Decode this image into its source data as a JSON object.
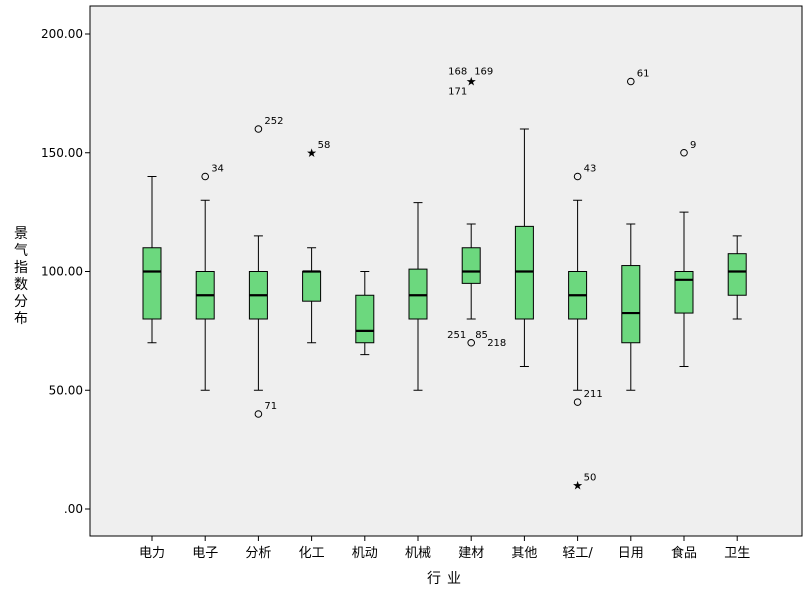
{
  "chart_data": {
    "type": "boxplot",
    "xlabel": "行业",
    "ylabel": "景气指数分布",
    "ylim": [
      0,
      200
    ],
    "yticks": [
      {
        "value": 0,
        "label": ".00"
      },
      {
        "value": 50,
        "label": "50.00"
      },
      {
        "value": 100,
        "label": "100.00"
      },
      {
        "value": 150,
        "label": "150.00"
      },
      {
        "value": 200,
        "label": "200.00"
      }
    ],
    "box_color": "#6cd87e",
    "plot_background": "#efefef",
    "categories": [
      "电力",
      "电子",
      "分析",
      "化工",
      "机动",
      "机械",
      "建材",
      "其他",
      "轻工/",
      "日用",
      "食品",
      "卫生"
    ],
    "boxes": [
      {
        "category": "电力",
        "min": 70,
        "q1": 80,
        "median": 100,
        "q3": 110,
        "max": 140,
        "outliers": []
      },
      {
        "category": "电子",
        "min": 50,
        "q1": 80,
        "median": 90,
        "q3": 100,
        "max": 130,
        "outliers": [
          {
            "value": 140,
            "marker": "circle",
            "labels": [
              "34"
            ]
          }
        ]
      },
      {
        "category": "分析",
        "min": 50,
        "q1": 80,
        "median": 90,
        "q3": 100,
        "max": 115,
        "outliers": [
          {
            "value": 160,
            "marker": "circle",
            "labels": [
              "252"
            ]
          },
          {
            "value": 40,
            "marker": "circle",
            "labels": [
              "71"
            ]
          }
        ]
      },
      {
        "category": "化工",
        "min": 70,
        "q1": 87.5,
        "median": 100,
        "q3": 100,
        "max": 110,
        "outliers": [
          {
            "value": 150,
            "marker": "star",
            "labels": [
              "58"
            ]
          }
        ]
      },
      {
        "category": "机动",
        "min": 65,
        "q1": 70,
        "median": 75,
        "q3": 90,
        "max": 100,
        "outliers": []
      },
      {
        "category": "机械",
        "min": 50,
        "q1": 80,
        "median": 90,
        "q3": 101,
        "max": 129,
        "outliers": []
      },
      {
        "category": "建材",
        "min": 80,
        "q1": 95,
        "median": 100,
        "q3": 110,
        "max": 120,
        "outliers": [
          {
            "value": 180,
            "marker": "star",
            "labels": [
              "168",
              "169",
              "171"
            ]
          },
          {
            "value": 70,
            "marker": "circle",
            "labels": [
              "251",
              "85",
              "218"
            ]
          }
        ]
      },
      {
        "category": "其他",
        "min": 60,
        "q1": 80,
        "median": 100,
        "q3": 119,
        "max": 160,
        "outliers": []
      },
      {
        "category": "轻工/",
        "min": 50,
        "q1": 80,
        "median": 90,
        "q3": 100,
        "max": 130,
        "outliers": [
          {
            "value": 140,
            "marker": "circle",
            "labels": [
              "43"
            ]
          },
          {
            "value": 45,
            "marker": "circle",
            "labels": [
              "211"
            ]
          },
          {
            "value": 10,
            "marker": "star",
            "labels": [
              "50"
            ]
          }
        ]
      },
      {
        "category": "日用",
        "min": 50,
        "q1": 70,
        "median": 82.5,
        "q3": 102.5,
        "max": 120,
        "outliers": [
          {
            "value": 180,
            "marker": "circle",
            "labels": [
              "61"
            ]
          }
        ]
      },
      {
        "category": "食品",
        "min": 60,
        "q1": 82.5,
        "median": 96.5,
        "q3": 100,
        "max": 125,
        "outliers": [
          {
            "value": 150,
            "marker": "circle",
            "labels": [
              "9"
            ]
          }
        ]
      },
      {
        "category": "卫生",
        "min": 80,
        "q1": 90,
        "median": 100,
        "q3": 107.5,
        "max": 115,
        "outliers": []
      }
    ]
  }
}
